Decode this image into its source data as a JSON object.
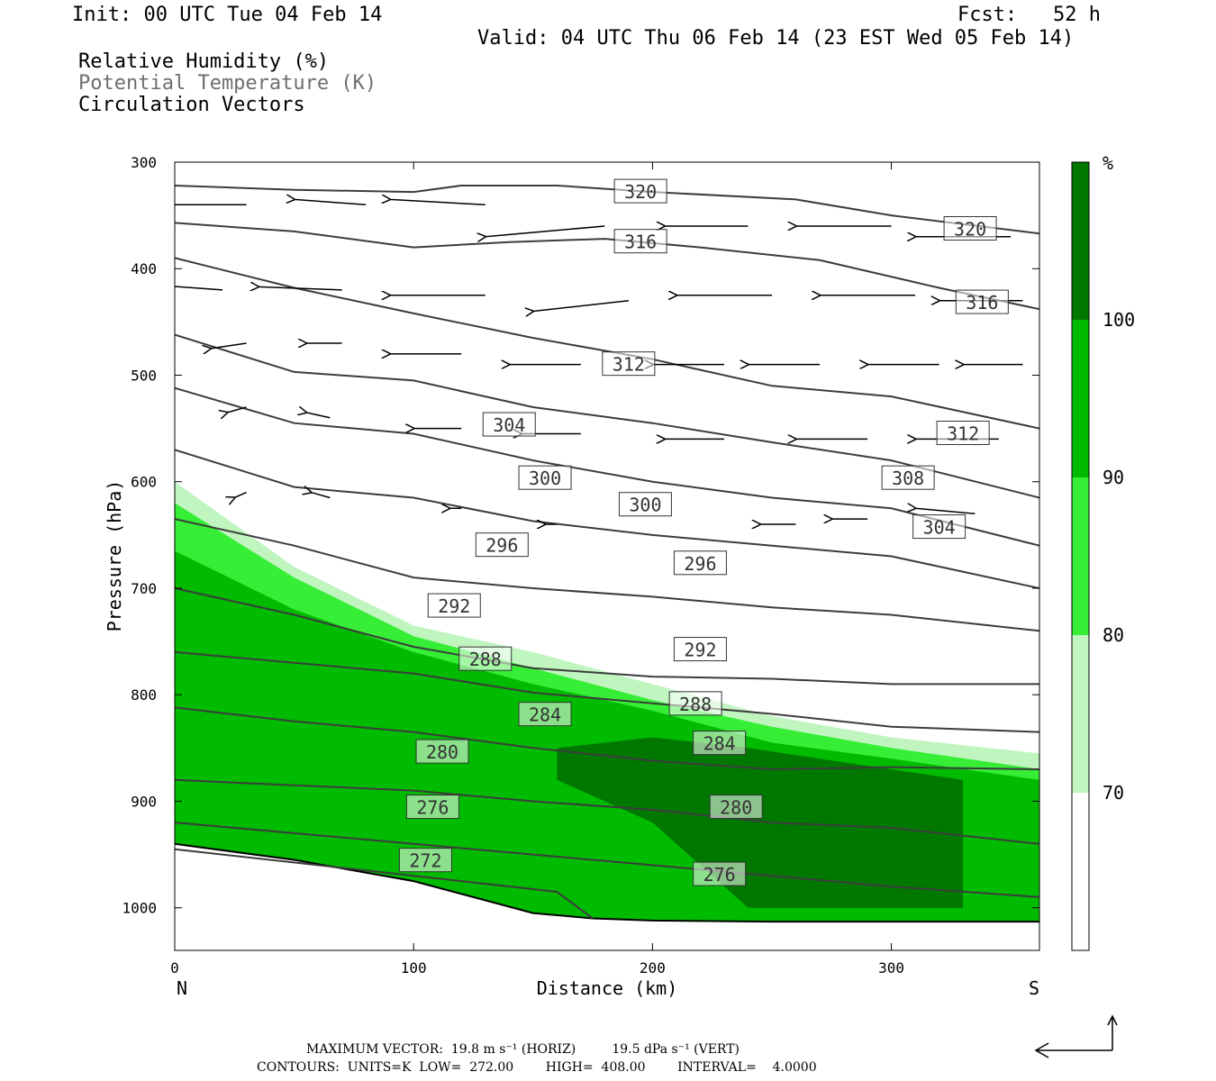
{
  "header": {
    "init": "Init: 00 UTC Tue 04 Feb 14",
    "fcst": "Fcst:   52 h",
    "valid": "Valid: 04 UTC Thu 06 Feb 14 (23 EST Wed 05 Feb 14)",
    "field_rh": "Relative Humidity (%)",
    "field_theta": "Potential Temperature (K)",
    "field_vec": "Circulation Vectors"
  },
  "axes": {
    "xlabel": "Distance (km)",
    "ylabel": "Pressure (hPa)",
    "x_start_label": "N",
    "x_end_label": "S",
    "colorbar_unit": "%"
  },
  "footer": {
    "max_vector": "MAXIMUM VECTOR:  19.8 m s⁻¹ (HORIZ)         19.5 dPa s⁻¹ (VERT)",
    "contours": "CONTOURS:  UNITS=K  LOW=  272.00        HIGH=  408.00        INTERVAL=    4.0000"
  },
  "colors": {
    "rh70": "#c0f5c0",
    "rh80": "#36ee36",
    "rh90": "#00bb00",
    "rh100": "#007800",
    "contour": "#3c3c3c"
  },
  "chart_data": {
    "type": "cross-section",
    "xlim": [
      0,
      362
    ],
    "ylim_hpa": [
      1040,
      300
    ],
    "x_ticks": [
      0,
      100,
      200,
      300
    ],
    "y_ticks": [
      300,
      400,
      500,
      600,
      700,
      800,
      900,
      1000
    ],
    "colorbar": {
      "levels": [
        70,
        80,
        90,
        100
      ],
      "labels": [
        "70",
        "80",
        "90",
        "100"
      ]
    },
    "theta_contours": [
      {
        "value": 320,
        "label": "320",
        "x": [
          0,
          50,
          100,
          120,
          160,
          200,
          260,
          300,
          362
        ],
        "p": [
          322,
          326,
          328,
          322,
          322,
          328,
          335,
          350,
          367
        ],
        "labels_at": [
          [
            195,
            328
          ],
          [
            333,
            363
          ]
        ]
      },
      {
        "value": 316,
        "label": "316",
        "x": [
          0,
          50,
          100,
          140,
          180,
          220,
          270,
          320,
          362
        ],
        "p": [
          357,
          365,
          380,
          375,
          372,
          380,
          392,
          418,
          438
        ],
        "labels_at": [
          [
            195,
            375
          ],
          [
            338,
            432
          ]
        ]
      },
      {
        "value": 312,
        "label": "312",
        "x": [
          0,
          50,
          100,
          150,
          200,
          250,
          300,
          362
        ],
        "p": [
          390,
          418,
          442,
          465,
          485,
          510,
          520,
          550
        ],
        "labels_at": [
          [
            190,
            490
          ],
          [
            330,
            555
          ]
        ]
      },
      {
        "value": 308,
        "label": "308",
        "x": [
          0,
          50,
          100,
          150,
          200,
          250,
          300,
          362
        ],
        "p": [
          462,
          497,
          505,
          530,
          545,
          563,
          580,
          615
        ],
        "labels_at": [
          [
            307,
            597
          ]
        ]
      },
      {
        "value": 304,
        "label": "304",
        "x": [
          0,
          50,
          100,
          150,
          200,
          250,
          300,
          362
        ],
        "p": [
          512,
          545,
          555,
          580,
          600,
          615,
          625,
          660
        ],
        "labels_at": [
          [
            140,
            547
          ],
          [
            320,
            643
          ]
        ]
      },
      {
        "value": 300,
        "label": "300",
        "x": [
          0,
          50,
          100,
          150,
          200,
          250,
          300,
          362
        ],
        "p": [
          570,
          605,
          615,
          637,
          650,
          660,
          670,
          700
        ],
        "labels_at": [
          [
            155,
            597
          ],
          [
            197,
            622
          ]
        ]
      },
      {
        "value": 296,
        "label": "296",
        "x": [
          0,
          50,
          100,
          150,
          200,
          250,
          300,
          362
        ],
        "p": [
          635,
          660,
          690,
          700,
          708,
          718,
          725,
          740
        ],
        "labels_at": [
          [
            137,
            660
          ],
          [
            220,
            677
          ]
        ]
      },
      {
        "value": 292,
        "label": "292",
        "x": [
          0,
          50,
          100,
          150,
          200,
          250,
          300,
          362
        ],
        "p": [
          700,
          725,
          755,
          775,
          783,
          785,
          790,
          790
        ],
        "labels_at": [
          [
            117,
            717
          ],
          [
            220,
            758
          ]
        ]
      },
      {
        "value": 288,
        "label": "288",
        "x": [
          0,
          50,
          100,
          150,
          200,
          250,
          300,
          362
        ],
        "p": [
          760,
          770,
          780,
          798,
          808,
          818,
          830,
          835
        ],
        "labels_at": [
          [
            130,
            767
          ],
          [
            218,
            809
          ]
        ]
      },
      {
        "value": 284,
        "label": "284",
        "x": [
          0,
          50,
          100,
          150,
          200,
          250,
          300,
          362
        ],
        "p": [
          812,
          825,
          835,
          850,
          862,
          870,
          868,
          870
        ],
        "labels_at": [
          [
            155,
            819
          ],
          [
            228,
            846
          ]
        ]
      },
      {
        "value": 280,
        "label": "280",
        "x": [
          0,
          50,
          100,
          150,
          200,
          250,
          300,
          362
        ],
        "p": [
          880,
          885,
          890,
          900,
          908,
          920,
          925,
          940
        ],
        "labels_at": [
          [
            112,
            854
          ],
          [
            235,
            906
          ]
        ]
      },
      {
        "value": 276,
        "label": "276",
        "x": [
          0,
          50,
          100,
          150,
          200,
          250,
          300,
          362
        ],
        "p": [
          920,
          930,
          940,
          950,
          960,
          970,
          980,
          990
        ],
        "labels_at": [
          [
            108,
            906
          ],
          [
            228,
            969
          ]
        ]
      },
      {
        "value": 272,
        "label": "272",
        "x": [
          0,
          40,
          80,
          120,
          160,
          175
        ],
        "p": [
          945,
          955,
          965,
          975,
          985,
          1010
        ],
        "labels_at": [
          [
            105,
            956
          ]
        ]
      }
    ],
    "terrain_hpa": {
      "x": [
        0,
        50,
        100,
        150,
        175,
        200,
        250,
        300,
        362
      ],
      "p": [
        940,
        955,
        975,
        1005,
        1010,
        1012,
        1013,
        1013,
        1013
      ]
    },
    "rh_top_boundary_hpa": {
      "rh70": {
        "x": [
          0,
          50,
          100,
          150,
          200,
          250,
          300,
          362
        ],
        "p": [
          600,
          680,
          735,
          760,
          790,
          820,
          840,
          855
        ]
      },
      "rh80": {
        "x": [
          0,
          50,
          100,
          150,
          200,
          250,
          300,
          362
        ],
        "p": [
          620,
          690,
          745,
          775,
          805,
          830,
          850,
          870
        ]
      },
      "rh90": {
        "x": [
          0,
          50,
          100,
          150,
          200,
          250,
          300,
          362
        ],
        "p": [
          665,
          720,
          760,
          790,
          815,
          845,
          860,
          880
        ]
      }
    },
    "rh100_region": {
      "x": [
        160,
        200,
        240,
        270,
        300,
        330,
        330,
        300,
        270,
        240,
        200,
        160
      ],
      "p": [
        850,
        840,
        850,
        860,
        870,
        880,
        1000,
        1000,
        1000,
        1000,
        920,
        880
      ]
    },
    "vectors": [
      {
        "x": 30,
        "p": 340,
        "dx": -30,
        "dp": 0
      },
      {
        "x": 80,
        "p": 340,
        "dx": -30,
        "dp": -5
      },
      {
        "x": 130,
        "p": 340,
        "dx": -40,
        "dp": -5
      },
      {
        "x": 180,
        "p": 360,
        "dx": -50,
        "dp": 10
      },
      {
        "x": 240,
        "p": 360,
        "dx": -35,
        "dp": 0
      },
      {
        "x": 300,
        "p": 360,
        "dx": -40,
        "dp": 0
      },
      {
        "x": 350,
        "p": 370,
        "dx": -40,
        "dp": 0
      },
      {
        "x": 20,
        "p": 420,
        "dx": -30,
        "dp": -5
      },
      {
        "x": 70,
        "p": 420,
        "dx": -35,
        "dp": -3
      },
      {
        "x": 130,
        "p": 425,
        "dx": -40,
        "dp": 0
      },
      {
        "x": 190,
        "p": 430,
        "dx": -40,
        "dp": 10
      },
      {
        "x": 250,
        "p": 425,
        "dx": -40,
        "dp": 0
      },
      {
        "x": 310,
        "p": 425,
        "dx": -40,
        "dp": 0
      },
      {
        "x": 355,
        "p": 430,
        "dx": -35,
        "dp": 0
      },
      {
        "x": 30,
        "p": 470,
        "dx": -15,
        "dp": 5
      },
      {
        "x": 70,
        "p": 470,
        "dx": -15,
        "dp": 0
      },
      {
        "x": 120,
        "p": 480,
        "dx": -30,
        "dp": 0
      },
      {
        "x": 170,
        "p": 490,
        "dx": -30,
        "dp": 0
      },
      {
        "x": 230,
        "p": 490,
        "dx": -30,
        "dp": 0
      },
      {
        "x": 270,
        "p": 490,
        "dx": -30,
        "dp": 0
      },
      {
        "x": 320,
        "p": 490,
        "dx": -30,
        "dp": 0
      },
      {
        "x": 355,
        "p": 490,
        "dx": -25,
        "dp": 0
      },
      {
        "x": 30,
        "p": 530,
        "dx": -8,
        "dp": 5
      },
      {
        "x": 65,
        "p": 540,
        "dx": -10,
        "dp": -5
      },
      {
        "x": 120,
        "p": 550,
        "dx": -20,
        "dp": 0
      },
      {
        "x": 170,
        "p": 555,
        "dx": -25,
        "dp": 0
      },
      {
        "x": 230,
        "p": 560,
        "dx": -25,
        "dp": 0
      },
      {
        "x": 290,
        "p": 560,
        "dx": -30,
        "dp": 0
      },
      {
        "x": 345,
        "p": 560,
        "dx": -35,
        "dp": 0
      },
      {
        "x": 30,
        "p": 610,
        "dx": -5,
        "dp": 5
      },
      {
        "x": 65,
        "p": 615,
        "dx": -8,
        "dp": -5
      },
      {
        "x": 120,
        "p": 625,
        "dx": -5,
        "dp": 0
      },
      {
        "x": 160,
        "p": 640,
        "dx": -5,
        "dp": 0
      },
      {
        "x": 260,
        "p": 640,
        "dx": -15,
        "dp": 0
      },
      {
        "x": 290,
        "p": 635,
        "dx": -15,
        "dp": 0
      },
      {
        "x": 335,
        "p": 630,
        "dx": -25,
        "dp": -5
      }
    ]
  }
}
